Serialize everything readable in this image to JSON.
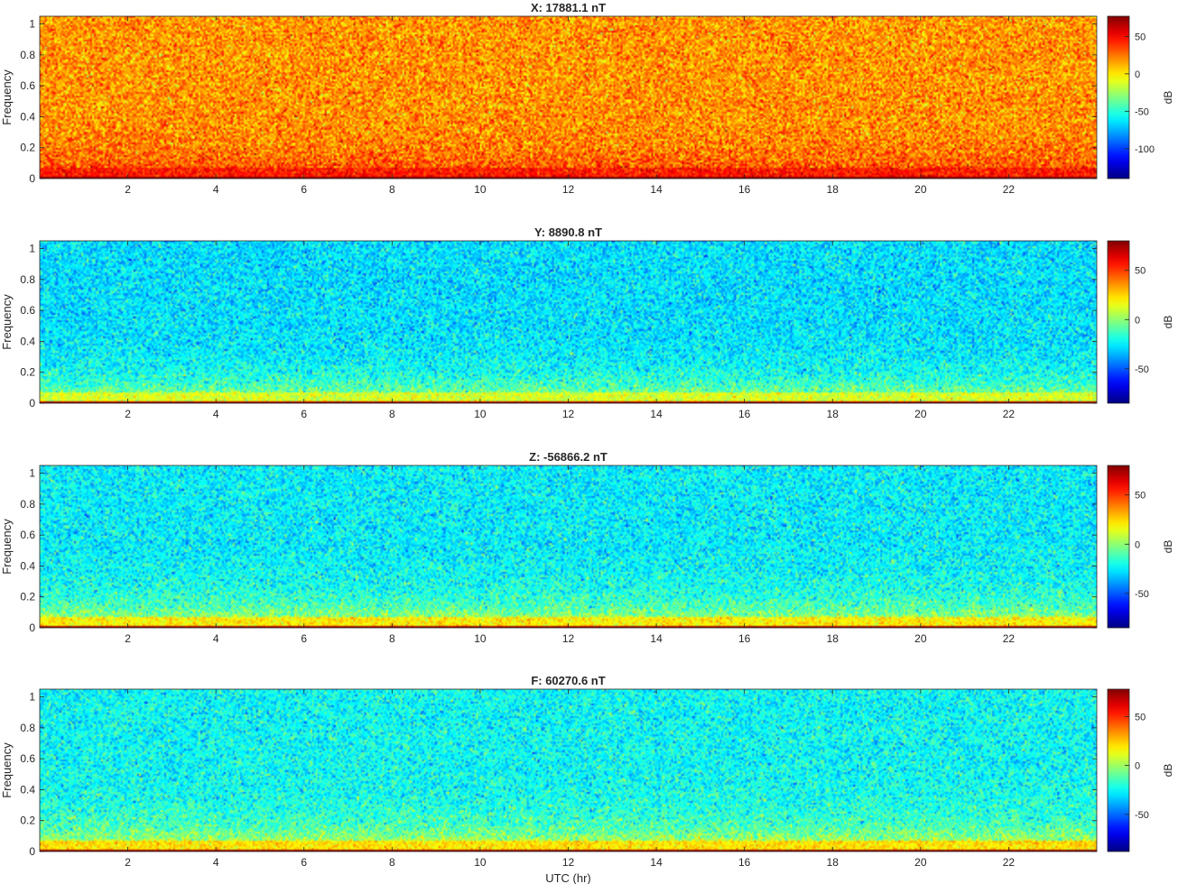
{
  "figure": {
    "x_label": "UTC (hr)",
    "colorbar_label": "dB",
    "colormap": "jet"
  },
  "chart_data": [
    {
      "type": "heatmap",
      "title": "X: 17881.1 nT",
      "ylabel": "Frequency",
      "xlabel": "",
      "xlim": [
        0,
        24
      ],
      "ylim": [
        0,
        1.05
      ],
      "xticks": [
        2,
        4,
        6,
        8,
        10,
        12,
        14,
        16,
        18,
        20,
        22
      ],
      "yticks": [
        0,
        0.2,
        0.4,
        0.6,
        0.8,
        1
      ],
      "colorbar": {
        "label": "dB",
        "range": [
          -140,
          77
        ],
        "ticks": [
          -100,
          -50,
          0,
          50
        ]
      },
      "background_db": 18,
      "low_band_db": 45,
      "dc_db": 75,
      "noise_db": 14
    },
    {
      "type": "heatmap",
      "title": "Y: 8890.8 nT",
      "ylabel": "Frequency",
      "xlabel": "",
      "xlim": [
        0,
        24
      ],
      "ylim": [
        0,
        1.05
      ],
      "xticks": [
        2,
        4,
        6,
        8,
        10,
        12,
        14,
        16,
        18,
        20,
        22
      ],
      "yticks": [
        0,
        0.2,
        0.4,
        0.6,
        0.8,
        1
      ],
      "colorbar": {
        "label": "dB",
        "range": [
          -85,
          80
        ],
        "ticks": [
          -50,
          0,
          50
        ]
      },
      "background_db": -28,
      "low_band_db": 12,
      "dc_db": 75,
      "noise_db": 10
    },
    {
      "type": "heatmap",
      "title": "Z: -56866.2 nT",
      "ylabel": "Frequency",
      "xlabel": "",
      "xlim": [
        0,
        24
      ],
      "ylim": [
        0,
        1.05
      ],
      "xticks": [
        2,
        4,
        6,
        8,
        10,
        12,
        14,
        16,
        18,
        20,
        22
      ],
      "yticks": [
        0,
        0.2,
        0.4,
        0.6,
        0.8,
        1
      ],
      "colorbar": {
        "label": "dB",
        "range": [
          -85,
          80
        ],
        "ticks": [
          -50,
          0,
          50
        ]
      },
      "background_db": -25,
      "low_band_db": 20,
      "dc_db": 75,
      "noise_db": 10
    },
    {
      "type": "heatmap",
      "title": "F: 60270.6 nT",
      "ylabel": "Frequency",
      "xlabel": "UTC (hr)",
      "xlim": [
        0,
        24
      ],
      "ylim": [
        0,
        1.05
      ],
      "xticks": [
        2,
        4,
        6,
        8,
        10,
        12,
        14,
        16,
        18,
        20,
        22
      ],
      "yticks": [
        0,
        0.2,
        0.4,
        0.6,
        0.8,
        1
      ],
      "colorbar": {
        "label": "dB",
        "range": [
          -88,
          78
        ],
        "ticks": [
          -50,
          0,
          50
        ]
      },
      "background_db": -25,
      "low_band_db": 20,
      "dc_db": 75,
      "noise_db": 10
    }
  ]
}
